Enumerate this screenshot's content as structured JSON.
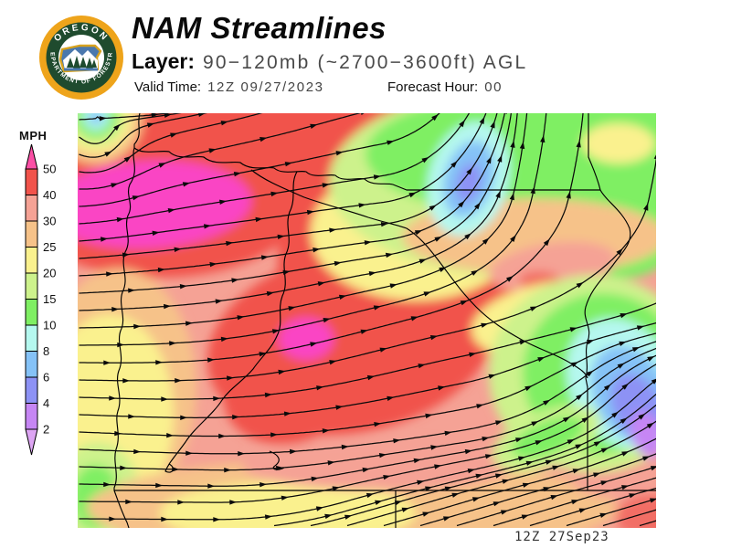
{
  "header": {
    "title": "NAM Streamlines",
    "layer": {
      "label": "Layer:",
      "value": "90−120mb (~2700−3600ft) AGL"
    },
    "valid_time": {
      "label": "Valid Time:",
      "value": "12Z 09/27/2023"
    },
    "forecast_hour": {
      "label": "Forecast Hour:",
      "value": "00"
    }
  },
  "logo": {
    "arc_top": "OREGON",
    "arc_bottom": "DEPARTMENT OF FORESTRY"
  },
  "legend": {
    "unit": "MPH",
    "tick_labels": [
      "50",
      "40",
      "30",
      "25",
      "20",
      "15",
      "10",
      "8",
      "6",
      "4",
      "2"
    ],
    "segment_colors": [
      "#F1534B",
      "#F5A295",
      "#F6C289",
      "#FAF18E",
      "#CDF28C",
      "#7FEF63",
      "#B5F8EF",
      "#85C2F7",
      "#8D92F5",
      "#C686F4"
    ],
    "above_max_color": "#FB4FA5",
    "below_min_color": "#DDA5F3",
    "map_over_max_color": "#FA44C4"
  },
  "map": {
    "timestamp": "12Z 27Sep23",
    "region": "Oregon",
    "flow_summary": "Westerly streamlines across western and central Oregon, turning northward over northeast Oregon and northeastward over eastern Oregon",
    "speed_maxima": "40-50+ MPH (red/magenta) over northwest coastal waters and central Oregon",
    "speed_minima": "2-10 MPH (cyan/blue/violet) pockets over the Columbia Basin and near the Snake River"
  }
}
